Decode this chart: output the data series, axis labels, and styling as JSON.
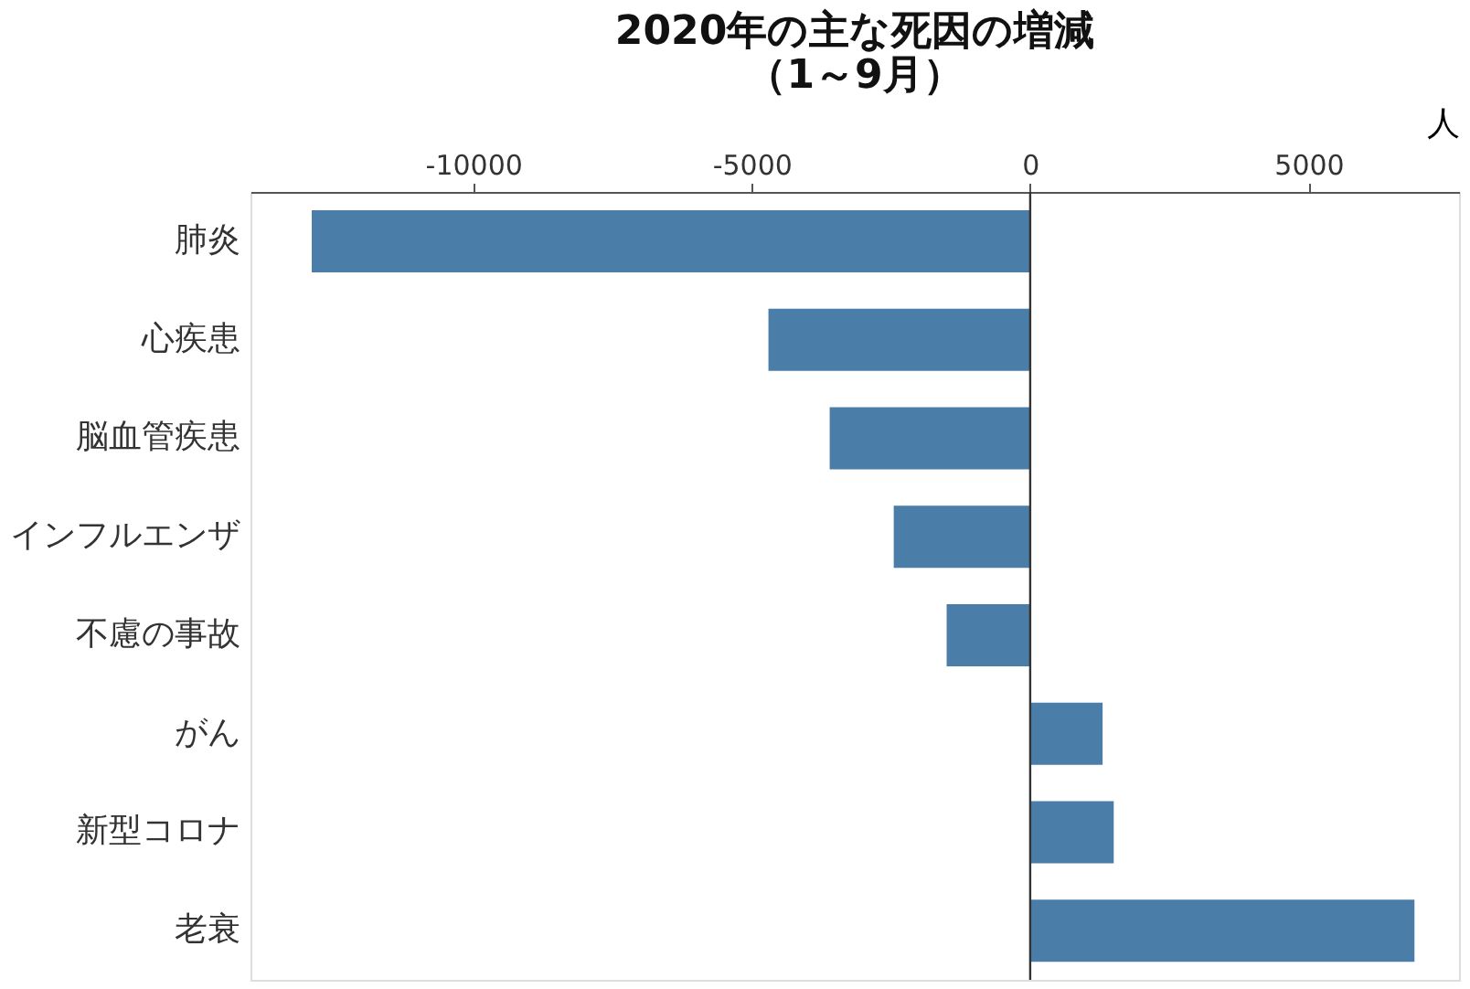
{
  "chart_data": {
    "type": "bar",
    "orientation": "horizontal",
    "title": [
      "2020年の主な死因の増減",
      "（1～9月）"
    ],
    "xlabel": "人",
    "categories": [
      "肺炎",
      "心疾患",
      "脳血管疾患",
      "インフルエンザ",
      "不慮の事故",
      "がん",
      "新型コロナ",
      "老衰"
    ],
    "values": [
      -12900,
      -4700,
      -3600,
      -2450,
      -1500,
      1300,
      1500,
      6900
    ],
    "color": "#4a7ea8",
    "xlim": [
      -14000,
      7700
    ],
    "xticks": [
      -10000,
      -5000,
      0,
      5000
    ],
    "grid": false,
    "ref_lines": [
      {
        "axis": "x",
        "value": 0,
        "color": "#333333"
      }
    ]
  }
}
